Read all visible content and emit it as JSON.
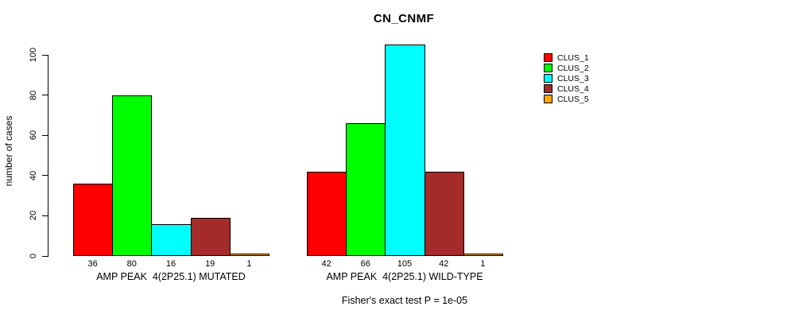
{
  "chart_data": {
    "type": "bar",
    "title": "CN_CNMF",
    "ylabel": "number of cases",
    "xlabel": "",
    "yticks": [
      0,
      20,
      40,
      60,
      80,
      100
    ],
    "ylim": [
      0,
      105
    ],
    "grid": false,
    "series_names": [
      "CLUS_1",
      "CLUS_2",
      "CLUS_3",
      "CLUS_4",
      "CLUS_5"
    ],
    "colors": [
      "#ff0000",
      "#00ff00",
      "#00ffff",
      "#a52a2a",
      "#ffa500"
    ],
    "groups": [
      {
        "id": "mutated",
        "label": "AMP PEAK  4(2P25.1) MUTATED",
        "values": [
          36,
          80,
          16,
          19,
          1
        ]
      },
      {
        "id": "wild-type",
        "label": "AMP PEAK  4(2P25.1) WILD-TYPE",
        "values": [
          42,
          66,
          105,
          42,
          1
        ]
      }
    ],
    "legend": {
      "position": "right",
      "entries": [
        "CLUS_1",
        "CLUS_2",
        "CLUS_3",
        "CLUS_4",
        "CLUS_5"
      ]
    },
    "footnote": "Fisher's exact test P = 1e-05"
  }
}
